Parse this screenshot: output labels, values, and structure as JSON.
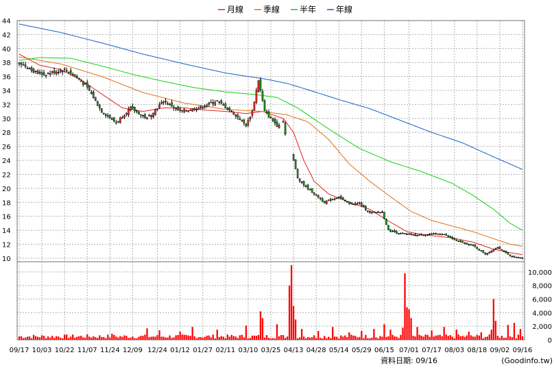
{
  "colors": {
    "up": "#f03030",
    "down": "#18a018",
    "flat": "#000000",
    "monthly": "#e02020",
    "quarterly": "#e07010",
    "half_year": "#10d010",
    "yearly": "#1060c0",
    "volume": "#ff0000",
    "grid": "#b0b0b0",
    "frame": "#707070"
  },
  "chart_data": {
    "type": "candlestick",
    "legend": [
      {
        "key": "monthly",
        "label": "月線"
      },
      {
        "key": "quarterly",
        "label": "季線"
      },
      {
        "key": "half_year",
        "label": "半年"
      },
      {
        "key": "yearly",
        "label": "年線"
      }
    ],
    "legend_position": "top-center",
    "grid": true,
    "price_axis": {
      "ylim": [
        9.5,
        44
      ],
      "ticks": [
        10,
        12,
        14,
        16,
        18,
        20,
        22,
        24,
        26,
        28,
        30,
        32,
        34,
        36,
        38,
        40,
        42,
        44
      ],
      "side": "left"
    },
    "volume_axis": {
      "ylim": [
        0,
        11500
      ],
      "ticks": [
        0,
        2000,
        4000,
        6000,
        8000,
        10000
      ],
      "tick_labels": [
        "0",
        "2,000",
        "4,000",
        "6,000",
        "8,000",
        "10,000"
      ],
      "side": "right"
    },
    "x_ticks": [
      "09/17",
      "10/03",
      "10/22",
      "11/07",
      "11/24",
      "12/09",
      "12/24",
      "01/12",
      "01/27",
      "02/11",
      "03/10",
      "03/25",
      "04/13",
      "04/28",
      "05/14",
      "05/29",
      "06/15",
      "07/01",
      "07/17",
      "08/03",
      "08/18",
      "09/02",
      "09/16"
    ],
    "n_days": 245,
    "close_anchors": [
      [
        0,
        38
      ],
      [
        6,
        37
      ],
      [
        12,
        36.3
      ],
      [
        22,
        37
      ],
      [
        28,
        36
      ],
      [
        34,
        34
      ],
      [
        40,
        31
      ],
      [
        47,
        29.4
      ],
      [
        54,
        31.5
      ],
      [
        62,
        30
      ],
      [
        70,
        32.5
      ],
      [
        78,
        31
      ],
      [
        87,
        31.5
      ],
      [
        96,
        32.5
      ],
      [
        105,
        30.5
      ],
      [
        110,
        29
      ],
      [
        113,
        31
      ],
      [
        116,
        35.5
      ],
      [
        119,
        31
      ],
      [
        125,
        29
      ],
      [
        128,
        29.5
      ],
      [
        129,
        27.8
      ],
      [
        131,
        26
      ],
      [
        133,
        24
      ],
      [
        135,
        21.5
      ],
      [
        138,
        20.5
      ],
      [
        142,
        19.5
      ],
      [
        148,
        18
      ],
      [
        155,
        18.8
      ],
      [
        160,
        17.8
      ],
      [
        165,
        17.8
      ],
      [
        170,
        16.5
      ],
      [
        176,
        16.6
      ],
      [
        179,
        14
      ],
      [
        185,
        13.5
      ],
      [
        192,
        13.3
      ],
      [
        197,
        13.4
      ],
      [
        205,
        13.5
      ],
      [
        212,
        12.5
      ],
      [
        220,
        11.8
      ],
      [
        226,
        10.6
      ],
      [
        232,
        11.6
      ],
      [
        238,
        10.3
      ],
      [
        244,
        10.0
      ]
    ],
    "monthly_ma": [
      [
        0,
        39.2
      ],
      [
        10,
        37.6
      ],
      [
        20,
        37
      ],
      [
        30,
        35.5
      ],
      [
        40,
        33.5
      ],
      [
        50,
        31.5
      ],
      [
        60,
        31
      ],
      [
        70,
        31.5
      ],
      [
        80,
        31.5
      ],
      [
        90,
        31.2
      ],
      [
        100,
        31
      ],
      [
        110,
        30.7
      ],
      [
        118,
        31
      ],
      [
        128,
        30
      ],
      [
        133,
        28
      ],
      [
        138,
        24
      ],
      [
        143,
        21
      ],
      [
        150,
        19.2
      ],
      [
        160,
        18
      ],
      [
        170,
        17
      ],
      [
        178,
        15.5
      ],
      [
        188,
        13.8
      ],
      [
        198,
        13.3
      ],
      [
        210,
        12.9
      ],
      [
        220,
        12.3
      ],
      [
        230,
        11.3
      ],
      [
        238,
        10.8
      ],
      [
        244,
        10.5
      ]
    ],
    "quarterly_ma": [
      [
        0,
        38.8
      ],
      [
        20,
        37.8
      ],
      [
        40,
        36
      ],
      [
        60,
        33.7
      ],
      [
        80,
        32.2
      ],
      [
        100,
        31.3
      ],
      [
        118,
        31
      ],
      [
        130,
        30.5
      ],
      [
        140,
        29.5
      ],
      [
        150,
        27
      ],
      [
        160,
        23.5
      ],
      [
        170,
        21
      ],
      [
        180,
        18.8
      ],
      [
        190,
        16.7
      ],
      [
        200,
        15.4
      ],
      [
        210,
        14.6
      ],
      [
        220,
        13.8
      ],
      [
        230,
        12.8
      ],
      [
        238,
        12
      ],
      [
        244,
        11.7
      ]
    ],
    "half_year_ma": [
      [
        0,
        38.3
      ],
      [
        10,
        38.7
      ],
      [
        25,
        38.6
      ],
      [
        40,
        37.5
      ],
      [
        55,
        36.3
      ],
      [
        70,
        35.3
      ],
      [
        85,
        34.4
      ],
      [
        100,
        33.8
      ],
      [
        115,
        33.4
      ],
      [
        125,
        33
      ],
      [
        135,
        31.5
      ],
      [
        150,
        28.5
      ],
      [
        165,
        25.7
      ],
      [
        180,
        23.8
      ],
      [
        195,
        22.4
      ],
      [
        210,
        20.7
      ],
      [
        220,
        19
      ],
      [
        230,
        17
      ],
      [
        238,
        15
      ],
      [
        244,
        14
      ]
    ],
    "yearly_ma": [
      [
        0,
        43.5
      ],
      [
        20,
        42.3
      ],
      [
        40,
        40.8
      ],
      [
        60,
        39.2
      ],
      [
        80,
        37.8
      ],
      [
        100,
        36.5
      ],
      [
        120,
        35.6
      ],
      [
        130,
        35
      ],
      [
        140,
        34.1
      ],
      [
        155,
        32.7
      ],
      [
        170,
        31.4
      ],
      [
        185,
        29.7
      ],
      [
        200,
        28
      ],
      [
        215,
        26.5
      ],
      [
        230,
        24.5
      ],
      [
        244,
        22.7
      ]
    ],
    "volume": {
      "base": 500,
      "spikes": [
        [
          45,
          900
        ],
        [
          62,
          1700
        ],
        [
          68,
          1400
        ],
        [
          78,
          1200
        ],
        [
          84,
          1900
        ],
        [
          96,
          1500
        ],
        [
          110,
          2100
        ],
        [
          117,
          4200
        ],
        [
          118,
          3200
        ],
        [
          125,
          2300
        ],
        [
          131,
          8000
        ],
        [
          132,
          11000
        ],
        [
          133,
          5000
        ],
        [
          134,
          3000
        ],
        [
          137,
          1600
        ],
        [
          145,
          1300
        ],
        [
          152,
          1900
        ],
        [
          160,
          1100
        ],
        [
          166,
          1300
        ],
        [
          172,
          1600
        ],
        [
          177,
          2300
        ],
        [
          180,
          1500
        ],
        [
          186,
          1800
        ],
        [
          187,
          9800
        ],
        [
          188,
          4800
        ],
        [
          189,
          4500
        ],
        [
          190,
          3200
        ],
        [
          193,
          1900
        ],
        [
          200,
          1400
        ],
        [
          206,
          1900
        ],
        [
          212,
          1500
        ],
        [
          218,
          1200
        ],
        [
          224,
          1100
        ],
        [
          229,
          1500
        ],
        [
          230,
          6000
        ],
        [
          231,
          2800
        ],
        [
          237,
          2200
        ],
        [
          240,
          2500
        ],
        [
          243,
          1600
        ]
      ]
    },
    "no_data_days": [
      127,
      130,
      131,
      132
    ]
  },
  "source_label": "資料日期: 09/16",
  "source_site": "(Goodinfo.tw)"
}
